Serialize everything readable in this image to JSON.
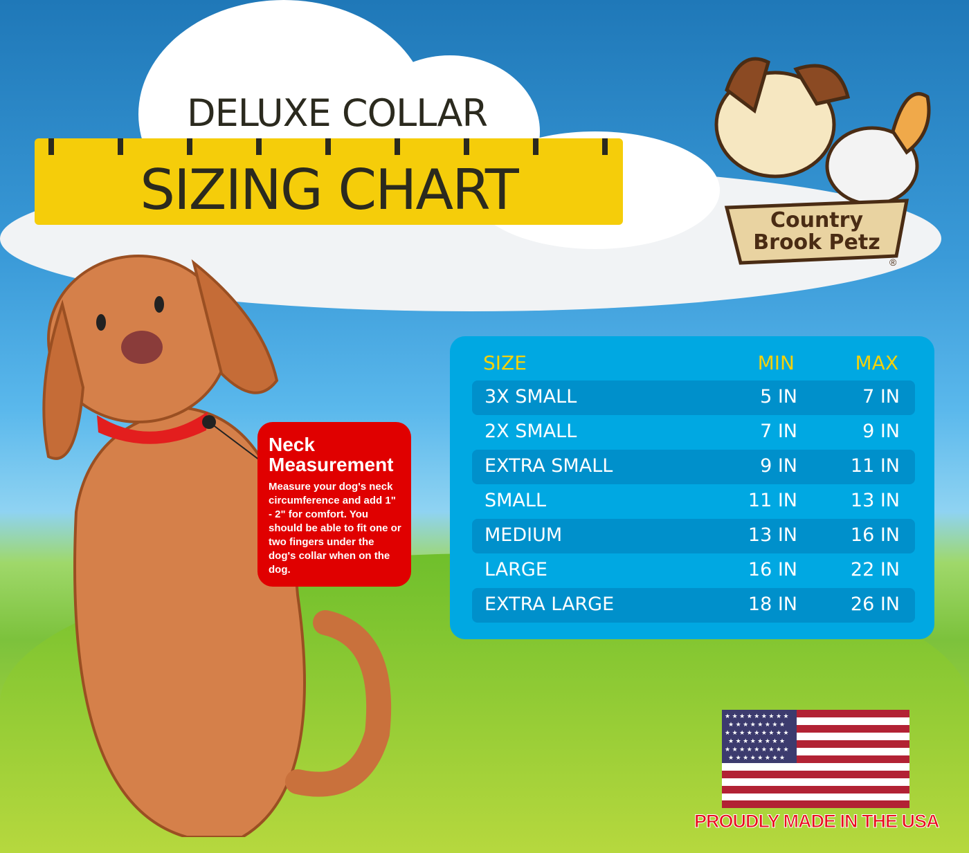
{
  "header": {
    "title_top": "DELUXE COLLAR",
    "title_main": "SIZING CHART"
  },
  "logo": {
    "text_line1": "Country",
    "text_line2": "Brook Petz",
    "registered": "®"
  },
  "sizing_table": {
    "headers": [
      "SIZE",
      "MIN",
      "MAX"
    ],
    "rows": [
      {
        "size": "3X SMALL",
        "min": "5 IN",
        "max": "7 IN"
      },
      {
        "size": "2X SMALL",
        "min": "7 IN",
        "max": "9 IN"
      },
      {
        "size": "EXTRA SMALL",
        "min": "9 IN",
        "max": "11 IN"
      },
      {
        "size": "SMALL",
        "min": "11 IN",
        "max": "13 IN"
      },
      {
        "size": "MEDIUM",
        "min": "13 IN",
        "max": "16 IN"
      },
      {
        "size": "LARGE",
        "min": "16 IN",
        "max": "22 IN"
      },
      {
        "size": "EXTRA LARGE",
        "min": "18 IN",
        "max": "26 IN"
      }
    ]
  },
  "neck_callout": {
    "title": "Neck Measurement",
    "body": "Measure your dog's neck circumference and add 1\" - 2\" for comfort. You should be able to fit one or two fingers under the dog's collar when on the dog."
  },
  "footer": {
    "made_in": "PROUDLY MADE IN THE USA"
  },
  "colors": {
    "ruler": "#f5cd0a",
    "table": "#00a8e2",
    "table_row_dark": "#0090cb",
    "header_text": "#f5d20a",
    "callout": "#e00000"
  }
}
